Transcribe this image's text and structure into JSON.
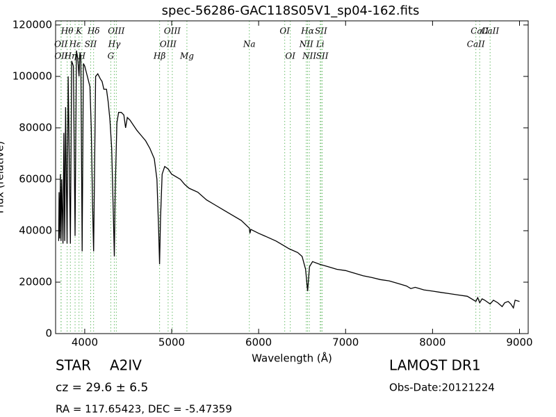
{
  "chart_data": {
    "type": "line",
    "title": "spec-56286-GAC118S05V1_sp04-162.fits",
    "xlabel": "Wavelength (Å)",
    "ylabel": "Flux (relative)",
    "x": [
      3700,
      3705,
      3712,
      3720,
      3727,
      3735,
      3750,
      3760,
      3770,
      3780,
      3797,
      3810,
      3835,
      3850,
      3870,
      3889,
      3905,
      3920,
      3934,
      3945,
      3955,
      3970,
      3985,
      4000,
      4030,
      4060,
      4075,
      4090,
      4102,
      4112,
      4125,
      4150,
      4180,
      4200,
      4220,
      4250,
      4270,
      4290,
      4310,
      4330,
      4340,
      4350,
      4370,
      4390,
      4420,
      4450,
      4470,
      4490,
      4520,
      4560,
      4600,
      4650,
      4700,
      4750,
      4800,
      4830,
      4850,
      4861,
      4872,
      4890,
      4920,
      4960,
      5000,
      5050,
      5100,
      5150,
      5200,
      5300,
      5400,
      5500,
      5600,
      5700,
      5800,
      5893,
      5900,
      5910,
      6000,
      6100,
      6200,
      6300,
      6350,
      6450,
      6500,
      6540,
      6563,
      6585,
      6620,
      6700,
      6800,
      6900,
      7000,
      7100,
      7200,
      7300,
      7400,
      7500,
      7600,
      7700,
      7750,
      7800,
      7900,
      8000,
      8100,
      8200,
      8300,
      8400,
      8498,
      8520,
      8542,
      8570,
      8600,
      8662,
      8700,
      8750,
      8800,
      8830,
      8870,
      8900,
      8930,
      8950,
      9000
    ],
    "series": [
      {
        "color": "#000000",
        "values": [
          36000,
          55000,
          37000,
          62000,
          36000,
          60000,
          35000,
          78000,
          36000,
          88000,
          35000,
          100000,
          35000,
          106000,
          104000,
          38000,
          110000,
          107000,
          100000,
          109000,
          108000,
          32000,
          105000,
          104000,
          100000,
          96000,
          80000,
          50000,
          32000,
          60000,
          100000,
          101000,
          99000,
          98000,
          95000,
          95000,
          90000,
          83000,
          72000,
          45000,
          30000,
          55000,
          82000,
          86000,
          86000,
          85000,
          80000,
          84000,
          83000,
          81000,
          79000,
          77000,
          75000,
          72000,
          68000,
          60000,
          40000,
          27000,
          45000,
          62000,
          65000,
          64000,
          62000,
          61000,
          60000,
          58000,
          56500,
          55000,
          52000,
          50000,
          48000,
          46000,
          44000,
          41000,
          39000,
          40500,
          39000,
          37500,
          36000,
          34000,
          33000,
          31500,
          30000,
          25000,
          16500,
          26000,
          28000,
          27000,
          26000,
          25000,
          24500,
          23500,
          22500,
          21800,
          21000,
          20500,
          19500,
          18500,
          17500,
          18000,
          17000,
          16500,
          16000,
          15500,
          15000,
          14500,
          12500,
          14000,
          12000,
          13500,
          13000,
          11500,
          13000,
          12000,
          10500,
          12000,
          12500,
          11500,
          10000,
          13000,
          12500
        ]
      }
    ],
    "xlim": [
      3665,
      9100
    ],
    "ylim": [
      0,
      121600
    ],
    "xticks": [
      4000,
      5000,
      6000,
      7000,
      8000,
      9000
    ],
    "yticks": [
      0,
      20000,
      40000,
      60000,
      80000,
      100000,
      120000
    ],
    "line_color": "#66bb66",
    "annotations": [
      {
        "text": "Hθ",
        "x": 3798
      },
      {
        "text": "K",
        "x": 3934
      },
      {
        "text": "Hδ",
        "x": 4102
      },
      {
        "text": "OIII",
        "x": 4363
      },
      {
        "text": "OIII",
        "x": 5007
      },
      {
        "text": "OI",
        "x": 6300
      },
      {
        "text": "Hα",
        "x": 6563
      },
      {
        "text": "SII",
        "x": 6717
      },
      {
        "text": "CaII",
        "x": 8542
      },
      {
        "text": "OII",
        "x": 3727
      },
      {
        "text": "Hε",
        "x": 3889
      },
      {
        "text": "SII",
        "x": 4068
      },
      {
        "text": "Hγ",
        "x": 4340
      },
      {
        "text": "OIII",
        "x": 4959
      },
      {
        "text": "Na",
        "x": 5893
      },
      {
        "text": "NII",
        "x": 6548
      },
      {
        "text": "Li",
        "x": 6708
      },
      {
        "text": "CaII",
        "x": 8498
      },
      {
        "text": "OII",
        "x": 3729
      },
      {
        "text": "Hη",
        "x": 3835
      },
      {
        "text": "H",
        "x": 3968
      },
      {
        "text": "G",
        "x": 4300
      },
      {
        "text": "Hβ",
        "x": 4861
      },
      {
        "text": "Mg",
        "x": 5175
      },
      {
        "text": "OI",
        "x": 6364
      },
      {
        "text": "NII",
        "x": 6583
      },
      {
        "text": "SII",
        "x": 6731
      },
      {
        "text": "CaII",
        "x": 8662
      }
    ],
    "object_class": "STAR",
    "subclass": "A2IV",
    "redshift": "cz = 29.6 ± 6.5",
    "coords": "RA = 117.65423, DEC = -5.47359",
    "survey": "LAMOST DR1",
    "obs_date": "Obs-Date:20121224"
  }
}
